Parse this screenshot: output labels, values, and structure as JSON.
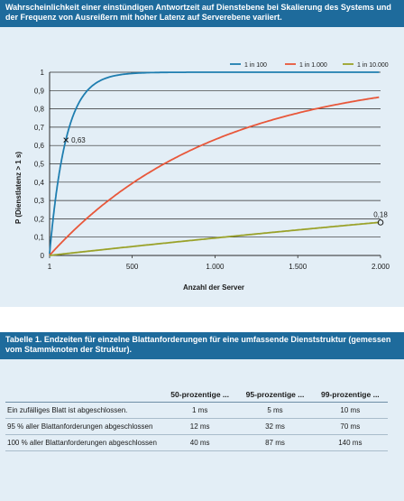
{
  "chart_header": "Wahrscheinlichkeit einer einstündigen Antwortzeit auf Dienstebene bei Skalierung des Systems und der Frequenz von Ausreißern mit hoher Latenz auf Serverebene variiert.",
  "table_header": "Tabelle 1. Endzeiten für einzelne Blattanforderungen für eine umfassende Dienststruktur (gemessen vom Stammknoten der Struktur).",
  "chart_data": {
    "type": "line",
    "title": "",
    "xlabel": "Anzahl der Server",
    "ylabel": "P (Dienstlatenz > 1 s)",
    "xlim": [
      1,
      2000
    ],
    "ylim": [
      0,
      1
    ],
    "x_ticks": [
      1,
      500,
      1000,
      1500,
      2000
    ],
    "x_tick_labels": [
      "1",
      "500",
      "1.000",
      "1.500",
      "2.000"
    ],
    "y_ticks": [
      0,
      0.1,
      0.2,
      0.3,
      0.4,
      0.5,
      0.6,
      0.7,
      0.8,
      0.9,
      1
    ],
    "y_tick_labels": [
      "0",
      "0,1",
      "0,2",
      "0,3",
      "0,4",
      "0,5",
      "0,6",
      "0,7",
      "0,8",
      "0,9",
      "1"
    ],
    "grid": "horizontal",
    "legend_position": "top-right",
    "series": [
      {
        "name": "1 in 100",
        "color": "#1f7eb0",
        "p": 0.01
      },
      {
        "name": "1 in 1.000",
        "color": "#e8573a",
        "p": 0.001
      },
      {
        "name": "1 in 10.000",
        "color": "#9aa22a",
        "p": 0.0001
      }
    ],
    "annotations": [
      {
        "x": 100,
        "y": 0.63,
        "text": "0,63",
        "marker": "x"
      },
      {
        "x": 2000,
        "y": 0.18,
        "text": "0,18",
        "marker": "circle"
      }
    ]
  },
  "table": {
    "columns": [
      "",
      "50-prozentige ...",
      "95-prozentige ...",
      "99-prozentige ..."
    ],
    "rows": [
      {
        "label": "Ein zufälliges Blatt ist abgeschlossen.",
        "values": [
          "1 ms",
          "5 ms",
          "10 ms"
        ]
      },
      {
        "label": "95 % aller Blattanforderungen abgeschlossen",
        "values": [
          "12 ms",
          "32 ms",
          "70 ms"
        ]
      },
      {
        "label": "100 % aller Blattanforderungen abgeschlossen",
        "values": [
          "40 ms",
          "87 ms",
          "140 ms"
        ]
      }
    ]
  }
}
